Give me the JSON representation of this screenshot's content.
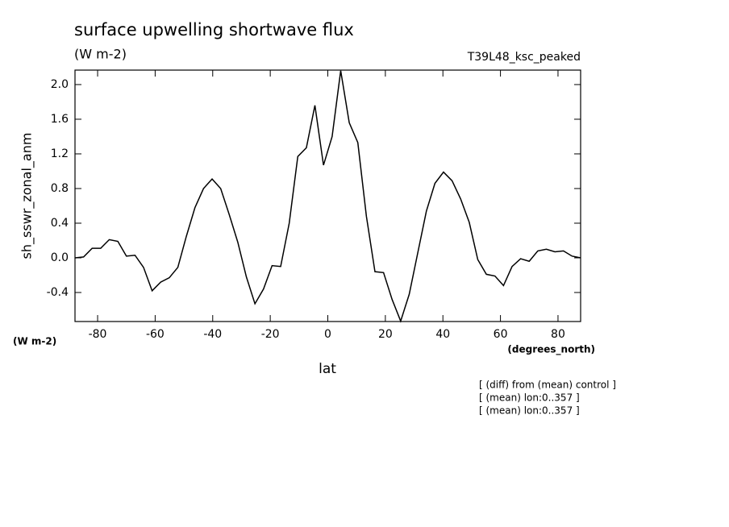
{
  "chart_data": {
    "type": "line",
    "title": "surface upwelling shortwave flux",
    "units": "(W m-2)",
    "run_label": "T39L48_ksc_peaked",
    "ylabel": "sh_sswr_zonal_anm",
    "y_units": "(W m-2)",
    "xlabel": "lat",
    "x_units": "(degrees_north)",
    "notes": [
      "[ (diff) from (mean) control ]",
      "[ (mean) lon:0..357 ]",
      "[ (mean) lon:0..357 ]"
    ],
    "x": [
      -87.86,
      -84.88,
      -81.9,
      -78.93,
      -75.95,
      -72.97,
      -69.99,
      -67.01,
      -64.04,
      -61.06,
      -58.08,
      -55.1,
      -52.12,
      -49.15,
      -46.17,
      -43.19,
      -40.21,
      -37.23,
      -34.26,
      -31.28,
      -28.3,
      -25.32,
      -22.34,
      -19.37,
      -16.39,
      -13.41,
      -10.43,
      -7.45,
      -4.48,
      -1.5,
      1.5,
      4.48,
      7.45,
      10.43,
      13.41,
      16.39,
      19.37,
      22.34,
      25.32,
      28.3,
      31.28,
      34.26,
      37.23,
      40.21,
      43.19,
      46.17,
      49.15,
      52.12,
      55.1,
      58.08,
      61.06,
      64.04,
      67.01,
      69.99,
      72.97,
      75.95,
      78.93,
      81.9,
      84.88,
      87.86
    ],
    "series": [
      {
        "name": "sh_sswr_zonal_anm",
        "color": "#000000",
        "values": [
          0.0,
          0.01,
          0.11,
          0.11,
          0.21,
          0.19,
          0.02,
          0.03,
          -0.11,
          -0.38,
          -0.28,
          -0.23,
          -0.11,
          0.25,
          0.58,
          0.8,
          0.91,
          0.8,
          0.5,
          0.18,
          -0.22,
          -0.53,
          -0.36,
          -0.09,
          -0.1,
          0.4,
          1.17,
          1.27,
          1.76,
          1.07,
          1.4,
          2.16,
          1.56,
          1.33,
          0.48,
          -0.16,
          -0.17,
          -0.48,
          -0.73,
          -0.42,
          0.06,
          0.54,
          0.86,
          0.99,
          0.89,
          0.68,
          0.41,
          -0.02,
          -0.19,
          -0.21,
          -0.32,
          -0.1,
          -0.01,
          -0.04,
          0.08,
          0.1,
          0.07,
          0.08,
          0.02,
          0.0
        ]
      }
    ],
    "xlim": [
      -87.86,
      87.86
    ],
    "ylim": [
      -0.735,
      2.167
    ],
    "xticks": [
      -80,
      -60,
      -40,
      -20,
      0,
      20,
      40,
      60,
      80
    ],
    "yticks": [
      -0.4,
      {
        "value": 0,
        "label": "0.0"
      },
      0.4,
      0.8,
      1.2,
      1.6,
      {
        "value": 2,
        "label": "2.0"
      }
    ]
  }
}
